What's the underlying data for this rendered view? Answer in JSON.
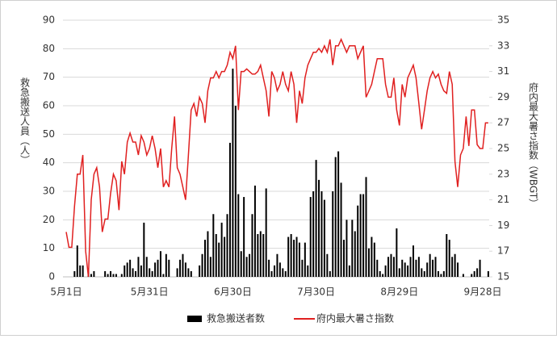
{
  "chart_data": {
    "type": "bar-line",
    "y_label": "救急搬送人員（人）",
    "y2_label": "府内最大暑さ指数（WBGT）",
    "categories": [
      "5月1日",
      null,
      null,
      null,
      null,
      null,
      null,
      null,
      null,
      null,
      null,
      null,
      null,
      null,
      null,
      null,
      null,
      null,
      null,
      null,
      null,
      null,
      null,
      null,
      null,
      null,
      null,
      null,
      null,
      null,
      "5月31日",
      null,
      null,
      null,
      null,
      null,
      null,
      null,
      null,
      null,
      null,
      null,
      null,
      null,
      null,
      null,
      null,
      null,
      null,
      null,
      null,
      null,
      null,
      null,
      null,
      null,
      null,
      null,
      null,
      null,
      "6月30日",
      null,
      null,
      null,
      null,
      null,
      null,
      null,
      null,
      null,
      null,
      null,
      null,
      null,
      null,
      null,
      null,
      null,
      null,
      null,
      null,
      null,
      null,
      null,
      null,
      null,
      null,
      null,
      null,
      null,
      "7月30日",
      null,
      null,
      null,
      null,
      null,
      null,
      null,
      null,
      null,
      null,
      null,
      null,
      null,
      null,
      null,
      null,
      null,
      null,
      null,
      null,
      null,
      null,
      null,
      null,
      null,
      null,
      null,
      null,
      null,
      "8月29日",
      null,
      null,
      null,
      null,
      null,
      null,
      null,
      null,
      null,
      null,
      null,
      null,
      null,
      null,
      null,
      null,
      null,
      null,
      null,
      null,
      null,
      null,
      null,
      null,
      null,
      null,
      null,
      null,
      null,
      "9月28日",
      null,
      null
    ],
    "series": [
      {
        "name": "救急搬送者数",
        "type": "bar",
        "color": "#000000",
        "values": [
          0,
          0,
          0,
          2,
          11,
          4,
          4,
          0,
          2,
          1,
          2,
          0,
          0,
          0,
          2,
          1,
          2,
          1,
          1,
          0,
          1,
          4,
          5,
          6,
          3,
          2,
          7,
          4,
          19,
          7,
          3,
          2,
          5,
          6,
          9,
          1,
          8,
          6,
          0,
          0,
          3,
          6,
          8,
          5,
          3,
          2,
          0,
          0,
          4,
          8,
          13,
          16,
          7,
          22,
          15,
          12,
          19,
          14,
          22,
          47,
          73,
          60,
          29,
          9,
          28,
          7,
          8,
          22,
          32,
          15,
          16,
          15,
          31,
          6,
          2,
          4,
          8,
          5,
          3,
          2,
          14,
          15,
          13,
          14,
          12,
          6,
          12,
          4,
          28,
          30,
          41,
          34,
          30,
          27,
          8,
          2,
          30,
          42,
          44,
          33,
          13,
          20,
          4,
          20,
          16,
          25,
          29,
          29,
          35,
          10,
          14,
          12,
          6,
          2,
          1,
          4,
          7,
          8,
          7,
          17,
          3,
          6,
          5,
          4,
          7,
          11,
          6,
          7,
          3,
          2,
          5,
          8,
          6,
          7,
          2,
          1,
          2,
          15,
          13,
          7,
          8,
          5,
          0,
          1,
          0,
          0,
          1,
          2,
          3,
          6,
          0,
          0,
          2
        ]
      },
      {
        "name": "府内最大暑さ指数",
        "type": "line",
        "axis": "y2",
        "color": "#e02020",
        "values": [
          18.5,
          17.3,
          17.3,
          20.5,
          23,
          23,
          24.5,
          17,
          15,
          21,
          23,
          23.5,
          22,
          18.5,
          19.5,
          19.5,
          21.5,
          23,
          22.5,
          20.2,
          24,
          23,
          25.5,
          26.2,
          25.5,
          25.5,
          24.5,
          26,
          25.5,
          24.5,
          25,
          26,
          25,
          23.5,
          25,
          22,
          22.5,
          22,
          25,
          27.5,
          23.5,
          23,
          22,
          21,
          24.5,
          28,
          28.5,
          27.5,
          29,
          28.5,
          27,
          29.5,
          30.5,
          30.5,
          31,
          30.5,
          31,
          31,
          31.5,
          32.5,
          32,
          33,
          28,
          31,
          31,
          31.2,
          31,
          30.8,
          30.8,
          31,
          31.5,
          30.5,
          29.5,
          27.5,
          31,
          30.5,
          29.5,
          30,
          31,
          30,
          29.5,
          31,
          30,
          27,
          29.5,
          28.5,
          30.5,
          31.5,
          32,
          32.5,
          32.5,
          32.8,
          32.5,
          33,
          32.5,
          33.5,
          31.5,
          33,
          33,
          33.5,
          33,
          32.5,
          33,
          33,
          33,
          32,
          32.5,
          33,
          29,
          29.5,
          30,
          31,
          32,
          32,
          32,
          30,
          29,
          29,
          30.5,
          28,
          26.8,
          30,
          29,
          30.5,
          31,
          31.5,
          30.5,
          28.5,
          26.5,
          28,
          29.5,
          30.5,
          31,
          30.5,
          30.8,
          30,
          29.5,
          29.3,
          31,
          30,
          24,
          22,
          24.5,
          25,
          27.5,
          25.2,
          28,
          28,
          25.3,
          25,
          25,
          27,
          27
        ]
      }
    ],
    "ylim": [
      0,
      90
    ],
    "yticks": [
      0,
      10,
      20,
      30,
      40,
      50,
      60,
      70,
      80,
      90
    ],
    "y2lim": [
      15,
      35
    ],
    "y2ticks": [
      15,
      17,
      19,
      21,
      23,
      25,
      27,
      29,
      31,
      33,
      35
    ],
    "grid": true,
    "legend": "bottom"
  }
}
